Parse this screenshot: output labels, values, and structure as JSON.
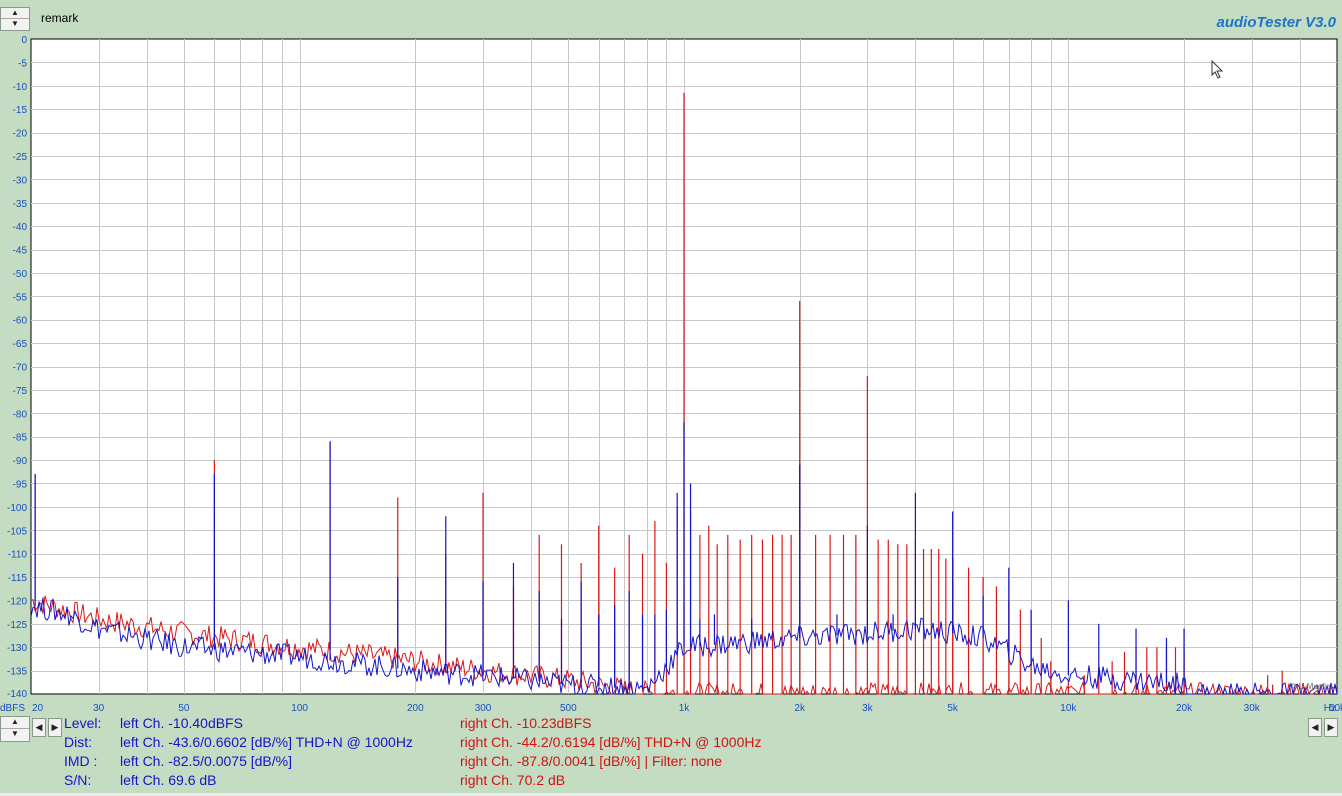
{
  "header": {
    "remark_label": "remark",
    "brand": "audioTester  V3.0"
  },
  "chart_data": {
    "type": "line",
    "title": "",
    "xlabel": "Hz",
    "ylabel": "dBFS",
    "x_scale": "log",
    "xlim": [
      20,
      50000
    ],
    "ylim": [
      -140,
      0
    ],
    "grid": true,
    "x_ticks": [
      {
        "v": 20,
        "l": "20"
      },
      {
        "v": 30,
        "l": "30"
      },
      {
        "v": 50,
        "l": "50"
      },
      {
        "v": 100,
        "l": "100"
      },
      {
        "v": 200,
        "l": "200"
      },
      {
        "v": 300,
        "l": "300"
      },
      {
        "v": 500,
        "l": "500"
      },
      {
        "v": 1000,
        "l": "1k"
      },
      {
        "v": 2000,
        "l": "2k"
      },
      {
        "v": 3000,
        "l": "3k"
      },
      {
        "v": 5000,
        "l": "5k"
      },
      {
        "v": 10000,
        "l": "10k"
      },
      {
        "v": 20000,
        "l": "20k"
      },
      {
        "v": 30000,
        "l": "30k"
      },
      {
        "v": 50000,
        "l": "50k"
      }
    ],
    "y_ticks": [
      0,
      -5,
      -10,
      -15,
      -20,
      -25,
      -30,
      -35,
      -40,
      -45,
      -50,
      -55,
      -60,
      -65,
      -70,
      -75,
      -80,
      -85,
      -90,
      -95,
      -100,
      -105,
      -110,
      -115,
      -120,
      -125,
      -130,
      -135,
      -140
    ],
    "series": [
      {
        "color": "#d81818",
        "floor": [
          [
            20,
            -120
          ],
          [
            22,
            -121
          ],
          [
            30,
            -124
          ],
          [
            50,
            -127
          ],
          [
            100,
            -130
          ],
          [
            200,
            -133
          ],
          [
            300,
            -135
          ],
          [
            500,
            -137
          ],
          [
            700,
            -139
          ],
          [
            850,
            -140
          ],
          [
            20500,
            -140
          ],
          [
            50000,
            -140
          ]
        ],
        "peaks": [
          [
            20.5,
            -93
          ],
          [
            60,
            -90
          ],
          [
            120,
            -86
          ],
          [
            180,
            -98
          ],
          [
            240,
            -110
          ],
          [
            300,
            -97
          ],
          [
            360,
            -117
          ],
          [
            420,
            -106
          ],
          [
            480,
            -108
          ],
          [
            540,
            -112
          ],
          [
            600,
            -104
          ],
          [
            660,
            -113
          ],
          [
            720,
            -106
          ],
          [
            780,
            -110
          ],
          [
            840,
            -103
          ],
          [
            900,
            -112
          ],
          [
            960,
            -100
          ],
          [
            1000,
            -11.5
          ],
          [
            1040,
            -101
          ],
          [
            1100,
            -106
          ],
          [
            1160,
            -104
          ],
          [
            1220,
            -108
          ],
          [
            1300,
            -106
          ],
          [
            1400,
            -107
          ],
          [
            1500,
            -106
          ],
          [
            1600,
            -107
          ],
          [
            1700,
            -106
          ],
          [
            1800,
            -106
          ],
          [
            1900,
            -106
          ],
          [
            2000,
            -56
          ],
          [
            2200,
            -106
          ],
          [
            2400,
            -106
          ],
          [
            2600,
            -106
          ],
          [
            2800,
            -106
          ],
          [
            3000,
            -72
          ],
          [
            3200,
            -107
          ],
          [
            3400,
            -107
          ],
          [
            3600,
            -108
          ],
          [
            3800,
            -108
          ],
          [
            4000,
            -107
          ],
          [
            4200,
            -109
          ],
          [
            4400,
            -109
          ],
          [
            4600,
            -109
          ],
          [
            4800,
            -111
          ],
          [
            5000,
            -111
          ],
          [
            5500,
            -113
          ],
          [
            6000,
            -115
          ],
          [
            6500,
            -117
          ],
          [
            7000,
            -120
          ],
          [
            7500,
            -122
          ],
          [
            8000,
            -125
          ],
          [
            8500,
            -128
          ],
          [
            9000,
            -133
          ],
          [
            10000,
            -137
          ],
          [
            11000,
            -136
          ],
          [
            12000,
            -135
          ],
          [
            13000,
            -133
          ],
          [
            14000,
            -131
          ],
          [
            15000,
            -130
          ],
          [
            16000,
            -130
          ],
          [
            17000,
            -130
          ],
          [
            18000,
            -130
          ],
          [
            19000,
            -130
          ],
          [
            20000,
            -131
          ],
          [
            33000,
            -136
          ],
          [
            34000,
            -138
          ],
          [
            36000,
            -135
          ],
          [
            48000,
            -139
          ]
        ]
      },
      {
        "color": "#1414c8",
        "floor": [
          [
            20,
            -121
          ],
          [
            25,
            -123
          ],
          [
            30,
            -126
          ],
          [
            50,
            -130
          ],
          [
            100,
            -132
          ],
          [
            200,
            -135
          ],
          [
            300,
            -136
          ],
          [
            500,
            -138
          ],
          [
            800,
            -139
          ],
          [
            1000,
            -130
          ],
          [
            2000,
            -128
          ],
          [
            3000,
            -127
          ],
          [
            4000,
            -126
          ],
          [
            5000,
            -127
          ],
          [
            6000,
            -128
          ],
          [
            7000,
            -131
          ],
          [
            8000,
            -134
          ],
          [
            10000,
            -136
          ],
          [
            15000,
            -137
          ],
          [
            20000,
            -138
          ],
          [
            21000,
            -140
          ],
          [
            50000,
            -140
          ]
        ],
        "peaks": [
          [
            20.5,
            -93
          ],
          [
            60,
            -93
          ],
          [
            120,
            -86
          ],
          [
            180,
            -115
          ],
          [
            240,
            -102
          ],
          [
            300,
            -116
          ],
          [
            360,
            -112
          ],
          [
            420,
            -118
          ],
          [
            480,
            -124
          ],
          [
            540,
            -116
          ],
          [
            600,
            -123
          ],
          [
            660,
            -121
          ],
          [
            720,
            -118
          ],
          [
            780,
            -123
          ],
          [
            840,
            -123
          ],
          [
            900,
            -122
          ],
          [
            960,
            -97
          ],
          [
            1000,
            -82
          ],
          [
            1040,
            -95
          ],
          [
            1100,
            -124
          ],
          [
            1200,
            -123
          ],
          [
            1500,
            -124
          ],
          [
            2000,
            -91
          ],
          [
            2500,
            -123
          ],
          [
            3000,
            -104
          ],
          [
            3500,
            -123
          ],
          [
            4000,
            -97
          ],
          [
            5000,
            -101
          ],
          [
            6000,
            -119
          ],
          [
            7000,
            -113
          ],
          [
            8000,
            -122
          ],
          [
            10000,
            -120
          ],
          [
            12000,
            -125
          ],
          [
            15000,
            -126
          ],
          [
            18000,
            -128
          ],
          [
            20000,
            -126
          ]
        ]
      }
    ]
  },
  "stats": {
    "level": {
      "label": "Level:",
      "left": "left Ch. -10.40dBFS",
      "right": "right Ch. -10.23dBFS"
    },
    "dist": {
      "label": "Dist:",
      "left": "left Ch. -43.6/0.6602 [dB/%] THD+N  @ 1000Hz",
      "right": "right Ch. -44.2/0.6194 [dB/%] THD+N  @ 1000Hz"
    },
    "imd": {
      "label": "IMD  :",
      "left": "left Ch. -82.5/0.0075 [dB/%]",
      "right": "right Ch. -87.8/0.0041 [dB/%] |   Filter: none"
    },
    "sn": {
      "label": "S/N:",
      "left": "left Ch. 69.6 dB",
      "right": "right Ch. 70.2 dB"
    }
  },
  "watermark": "© U.Mueller"
}
